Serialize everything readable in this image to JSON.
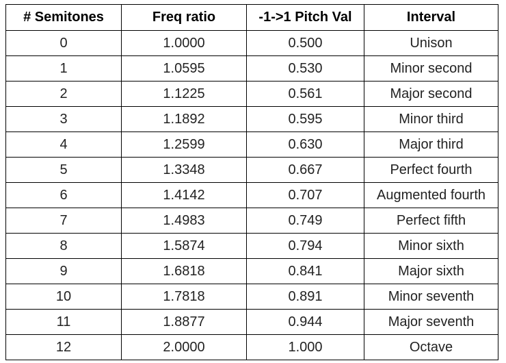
{
  "table": {
    "header": [
      "# Semitones",
      "Freq ratio",
      "-1->1 Pitch Val",
      "Interval"
    ],
    "rows": [
      [
        "0",
        "1.0000",
        "0.500",
        "Unison"
      ],
      [
        "1",
        "1.0595",
        "0.530",
        "Minor second"
      ],
      [
        "2",
        "1.1225",
        "0.561",
        "Major second"
      ],
      [
        "3",
        "1.1892",
        "0.595",
        "Minor third"
      ],
      [
        "4",
        "1.2599",
        "0.630",
        "Major third"
      ],
      [
        "5",
        "1.3348",
        "0.667",
        "Perfect fourth"
      ],
      [
        "6",
        "1.4142",
        "0.707",
        "Augmented fourth"
      ],
      [
        "7",
        "1.4983",
        "0.749",
        "Perfect fifth"
      ],
      [
        "8",
        "1.5874",
        "0.794",
        "Minor sixth"
      ],
      [
        "9",
        "1.6818",
        "0.841",
        "Major sixth"
      ],
      [
        "10",
        "1.7818",
        "0.891",
        "Minor seventh"
      ],
      [
        "11",
        "1.8877",
        "0.944",
        "Major seventh"
      ],
      [
        "12",
        "2.0000",
        "1.000",
        "Octave"
      ]
    ]
  }
}
